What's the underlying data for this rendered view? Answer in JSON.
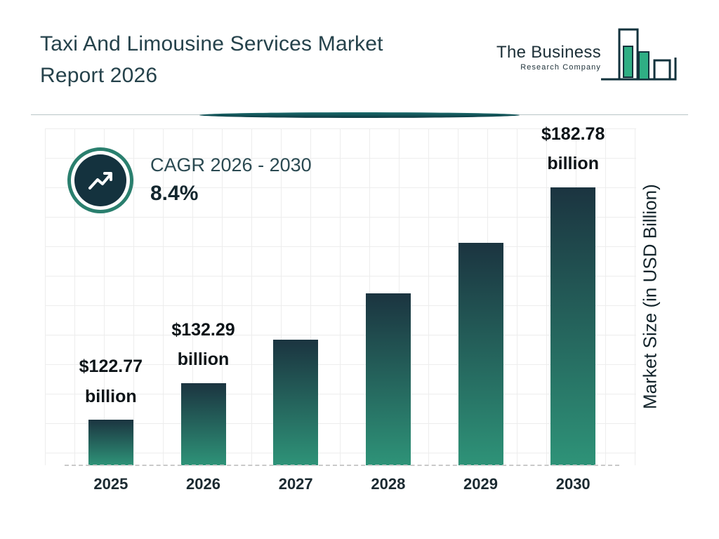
{
  "header": {
    "title_line1": "Taxi And Limousine Services Market",
    "title_line2": "Report 2026"
  },
  "logo": {
    "line1": "The Business",
    "line2": "Research Company",
    "icon": "bar-chart-logo-icon",
    "colors": {
      "outline": "#12323c",
      "fill_green": "#2fae84"
    }
  },
  "cagr": {
    "label": "CAGR 2026 - 2030",
    "value": "8.4%",
    "icon": "trending-up-icon"
  },
  "chart_data": {
    "type": "bar",
    "title": "Taxi And Limousine Services Market Report 2026",
    "categories": [
      "2025",
      "2026",
      "2027",
      "2028",
      "2029",
      "2030"
    ],
    "values": [
      122.77,
      132.29,
      143.4,
      155.45,
      168.51,
      182.78
    ],
    "value_labels": [
      {
        "amount": "$122.77",
        "unit": "billion"
      },
      {
        "amount": "$132.29",
        "unit": "billion"
      },
      null,
      null,
      null,
      {
        "amount": "$182.78",
        "unit": "billion"
      }
    ],
    "xlabel": "",
    "ylabel": "Market Size (in USD Billion)",
    "ylim": [
      111,
      198
    ],
    "grid": true,
    "legend": "none",
    "bar_gradient": [
      "#1b3440",
      "#2e9378"
    ]
  },
  "colors": {
    "title": "#25424b",
    "accent_teal_ring": "#2a7f6e",
    "badge_navy": "#14323e",
    "divider_teal": "#0d3a42"
  }
}
